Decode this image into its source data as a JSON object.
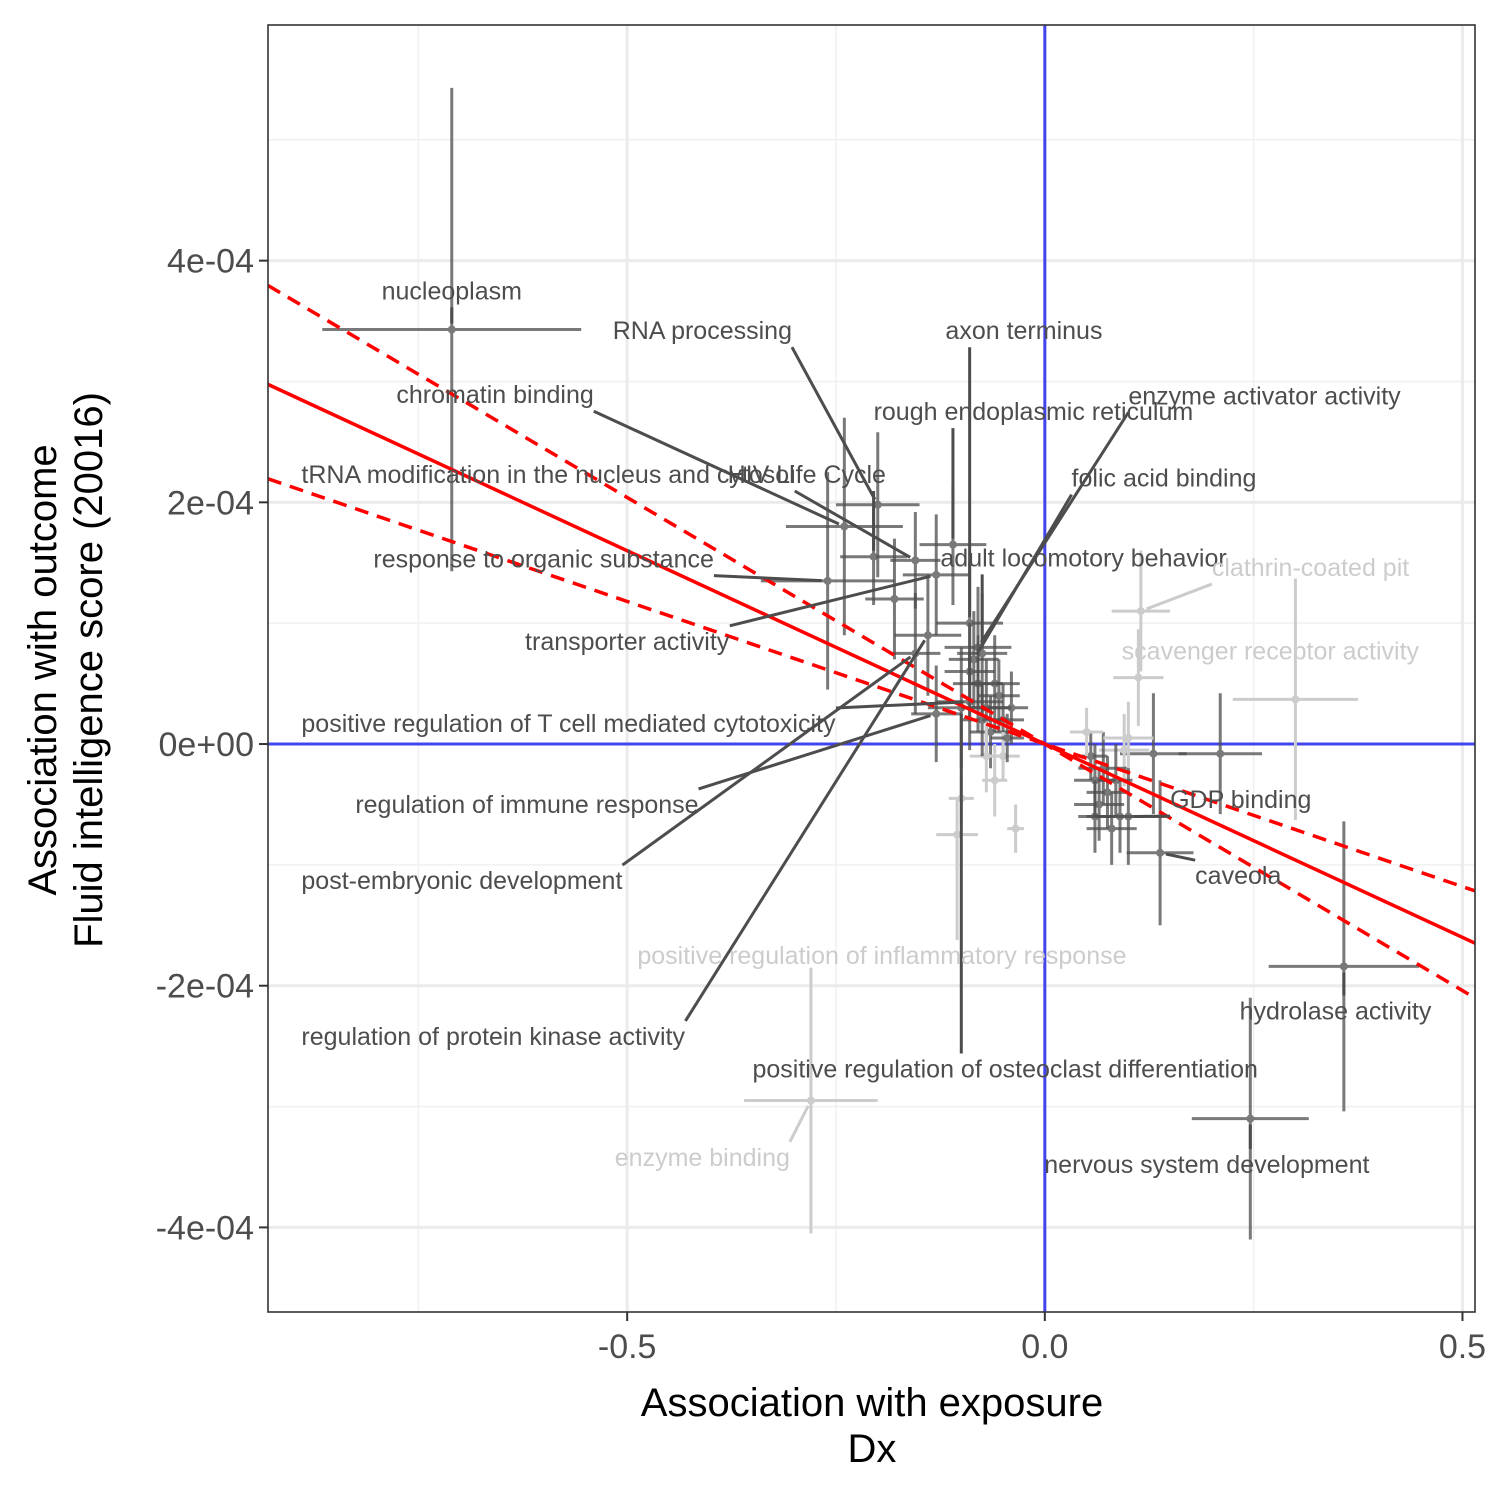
{
  "chart_data": {
    "type": "scatter",
    "title": "",
    "xlabel": "Association with exposure",
    "xlabel2": "Dx",
    "ylabel": "Association with outcome",
    "ylabel2": "Fluid intelligence score (20016)",
    "xlim": [
      -0.93,
      0.515
    ],
    "ylim": [
      -0.00047,
      0.000595
    ],
    "x_ticks": [
      -0.5,
      0.0,
      0.5
    ],
    "x_tick_labels": [
      "-0.5",
      "0.0",
      "0.5"
    ],
    "y_ticks": [
      0.0004,
      0.0002,
      0.0,
      -0.0002,
      -0.0004
    ],
    "y_tick_labels": [
      "4e-04",
      "2e-04",
      "0e+00",
      "-2e-04",
      "-4e-04"
    ],
    "grid": true,
    "reference_lines": {
      "x": 0,
      "y": 0,
      "color": "#4444ee"
    },
    "regression": {
      "slope": -0.00032,
      "intercept": 0.0,
      "ci_upper_slope": -0.000236,
      "ci_lower_slope": -0.000408,
      "color": "#ff0000"
    },
    "colors": {
      "dark": "#4d4d4d",
      "light": "#cccccc"
    },
    "labeled_points": [
      {
        "label": "nucleoplasm",
        "x": -0.71,
        "y": 0.000343,
        "xerr": 0.155,
        "yerr": 0.0002,
        "shade": "dark",
        "lx": -0.71,
        "ly": 0.000368,
        "anchor": "middle"
      },
      {
        "label": "chromatin binding",
        "x": -0.24,
        "y": 0.00018,
        "xerr": 0.07,
        "yerr": 9e-05,
        "shade": "dark",
        "lx": -0.54,
        "ly": 0.000282,
        "anchor": "end"
      },
      {
        "label": "RNA processing",
        "x": -0.2,
        "y": 0.000198,
        "xerr": 0.05,
        "yerr": 6e-05,
        "shade": "dark",
        "lx": -0.41,
        "ly": 0.000335,
        "anchor": "middle"
      },
      {
        "label": "axon terminus",
        "x": -0.09,
        "y": 0.0001,
        "xerr": 0.04,
        "yerr": 5e-05,
        "shade": "dark",
        "lx": -0.025,
        "ly": 0.000335,
        "anchor": "middle"
      },
      {
        "label": "rough endoplasmic reticulum",
        "x": -0.11,
        "y": 0.000165,
        "xerr": 0.04,
        "yerr": 5e-05,
        "shade": "dark",
        "lx": -0.205,
        "ly": 0.000268,
        "anchor": "start"
      },
      {
        "label": "enzyme activator activity",
        "x": -0.08,
        "y": 8e-05,
        "xerr": 0.04,
        "yerr": 5e-05,
        "shade": "dark",
        "lx": 0.1,
        "ly": 0.000281,
        "anchor": "start"
      },
      {
        "label": "tRNA modification in the nucleus and cytosol",
        "x": -0.155,
        "y": 0.000152,
        "xerr": 0.03,
        "yerr": 4e-05,
        "shade": "dark",
        "lx": -0.89,
        "ly": 0.000216,
        "anchor": "start"
      },
      {
        "label": "HIV Life Cycle",
        "x": -0.205,
        "y": 0.000155,
        "xerr": 0.04,
        "yerr": 4e-05,
        "shade": "dark",
        "lx": -0.285,
        "ly": 0.000216,
        "anchor": "middle"
      },
      {
        "label": "folic acid binding",
        "x": -0.085,
        "y": 7e-05,
        "xerr": 0.03,
        "yerr": 4e-05,
        "shade": "dark",
        "lx": 0.032,
        "ly": 0.000213,
        "anchor": "start"
      },
      {
        "label": "response to organic substance",
        "x": -0.26,
        "y": 0.000135,
        "xerr": 0.08,
        "yerr": 9e-05,
        "shade": "dark",
        "lx": -0.6,
        "ly": 0.000146,
        "anchor": "middle"
      },
      {
        "label": "adult locomotory behavior",
        "x": -0.075,
        "y": 7.5e-05,
        "xerr": 0.03,
        "yerr": 5e-05,
        "shade": "dark",
        "lx": -0.125,
        "ly": 0.000147,
        "anchor": "start"
      },
      {
        "label": "transporter activity",
        "x": -0.13,
        "y": 0.00014,
        "xerr": 0.04,
        "yerr": 5e-05,
        "shade": "dark",
        "lx": -0.5,
        "ly": 7.8e-05,
        "anchor": "middle"
      },
      {
        "label": "positive regulation of T cell mediated cytotoxicity",
        "x": -0.09,
        "y": 3.5e-05,
        "xerr": 0.04,
        "yerr": 4e-05,
        "shade": "dark",
        "lx": -0.89,
        "ly": 1e-05,
        "anchor": "start"
      },
      {
        "label": "regulation of immune response",
        "x": -0.13,
        "y": 2.5e-05,
        "xerr": 0.03,
        "yerr": 4e-05,
        "shade": "dark",
        "lx": -0.62,
        "ly": -5.7e-05,
        "anchor": "middle"
      },
      {
        "label": "post-embryonic development",
        "x": -0.155,
        "y": 7.5e-05,
        "xerr": 0.03,
        "yerr": 5e-05,
        "shade": "dark",
        "lx": -0.89,
        "ly": -0.00012,
        "anchor": "start"
      },
      {
        "label": "regulation of protein kinase activity",
        "x": -0.14,
        "y": 9e-05,
        "xerr": 0.04,
        "yerr": 5e-05,
        "shade": "dark",
        "lx": -0.89,
        "ly": -0.000249,
        "anchor": "start"
      },
      {
        "label": "positive regulation of osteoclast differentiation",
        "x": -0.1,
        "y": 3e-05,
        "xerr": 0.04,
        "yerr": 5e-05,
        "shade": "dark",
        "lx": -0.35,
        "ly": -0.000276,
        "anchor": "start"
      },
      {
        "label": "GDP binding",
        "x": 0.1,
        "y": -6e-05,
        "xerr": 0.05,
        "yerr": 4e-05,
        "shade": "dark",
        "lx": 0.15,
        "ly": -5.3e-05,
        "anchor": "start"
      },
      {
        "label": "caveola",
        "x": 0.138,
        "y": -9e-05,
        "xerr": 0.04,
        "yerr": 6e-05,
        "shade": "dark",
        "lx": 0.18,
        "ly": -0.000116,
        "anchor": "start"
      },
      {
        "label": "hydrolase activity",
        "x": 0.358,
        "y": -0.000184,
        "xerr": 0.09,
        "yerr": 0.00012,
        "shade": "dark",
        "lx": 0.348,
        "ly": -0.000228,
        "anchor": "middle"
      },
      {
        "label": "nervous system development",
        "x": 0.246,
        "y": -0.00031,
        "xerr": 0.07,
        "yerr": 0.0001,
        "shade": "dark",
        "lx": 0.194,
        "ly": -0.000355,
        "anchor": "middle"
      },
      {
        "label": "clathrin-coated pit",
        "x": 0.115,
        "y": 0.00011,
        "xerr": 0.035,
        "yerr": 5e-05,
        "shade": "light",
        "lx": 0.2,
        "ly": 0.000139,
        "anchor": "start"
      },
      {
        "label": "scavenger receptor activity",
        "x": 0.112,
        "y": 5.5e-05,
        "xerr": 0.03,
        "yerr": 4e-05,
        "shade": "light",
        "lx": 0.27,
        "ly": 7e-05,
        "anchor": "middle"
      },
      {
        "label": "positive regulation of inflammatory response",
        "x": -0.105,
        "y": -7.5e-05,
        "xerr": 0.025,
        "yerr": 3e-05,
        "shade": "light",
        "lx": -0.195,
        "ly": -0.000182,
        "anchor": "middle"
      },
      {
        "label": "enzyme binding",
        "x": -0.28,
        "y": -0.000295,
        "xerr": 0.08,
        "yerr": 0.00011,
        "shade": "light",
        "lx": -0.41,
        "ly": -0.000349,
        "anchor": "middle"
      }
    ],
    "unlabeled_points": [
      {
        "x": 0.3,
        "y": 3.7e-05,
        "xerr": 0.075,
        "yerr": 0.0001,
        "shade": "light"
      },
      {
        "x": 0.21,
        "y": -8e-06,
        "xerr": 0.05,
        "yerr": 5e-05,
        "shade": "dark"
      },
      {
        "x": 0.13,
        "y": -8e-06,
        "xerr": 0.04,
        "yerr": 5e-05,
        "shade": "dark"
      },
      {
        "x": 0.095,
        "y": -5e-06,
        "xerr": 0.03,
        "yerr": 3e-05,
        "shade": "light"
      },
      {
        "x": 0.07,
        "y": -2e-05,
        "xerr": 0.03,
        "yerr": 3e-05,
        "shade": "dark"
      },
      {
        "x": 0.06,
        "y": -3e-05,
        "xerr": 0.025,
        "yerr": 3e-05,
        "shade": "dark"
      },
      {
        "x": 0.065,
        "y": -5e-05,
        "xerr": 0.03,
        "yerr": 3e-05,
        "shade": "dark"
      },
      {
        "x": 0.075,
        "y": -4e-05,
        "xerr": 0.025,
        "yerr": 3e-05,
        "shade": "dark"
      },
      {
        "x": 0.08,
        "y": -7e-05,
        "xerr": 0.03,
        "yerr": 3e-05,
        "shade": "dark"
      },
      {
        "x": 0.055,
        "y": -1e-05,
        "xerr": 0.02,
        "yerr": 2e-05,
        "shade": "dark"
      },
      {
        "x": 0.09,
        "y": -6e-05,
        "xerr": 0.03,
        "yerr": 3e-05,
        "shade": "dark"
      },
      {
        "x": 0.05,
        "y": 1e-05,
        "xerr": 0.02,
        "yerr": 2e-05,
        "shade": "light"
      },
      {
        "x": 0.1,
        "y": 5e-06,
        "xerr": 0.03,
        "yerr": 3e-05,
        "shade": "light"
      },
      {
        "x": 0.085,
        "y": -3e-05,
        "xerr": 0.02,
        "yerr": 3e-05,
        "shade": "dark"
      },
      {
        "x": 0.06,
        "y": -6e-05,
        "xerr": 0.02,
        "yerr": 3e-05,
        "shade": "dark"
      },
      {
        "x": -0.06,
        "y": 5e-05,
        "xerr": 0.03,
        "yerr": 4e-05,
        "shade": "dark"
      },
      {
        "x": -0.07,
        "y": 3e-05,
        "xerr": 0.03,
        "yerr": 4e-05,
        "shade": "dark"
      },
      {
        "x": -0.05,
        "y": 2e-05,
        "xerr": 0.025,
        "yerr": 3e-05,
        "shade": "dark"
      },
      {
        "x": -0.08,
        "y": 5e-05,
        "xerr": 0.03,
        "yerr": 4e-05,
        "shade": "dark"
      },
      {
        "x": -0.065,
        "y": 1e-05,
        "xerr": 0.025,
        "yerr": 3e-05,
        "shade": "dark"
      },
      {
        "x": -0.04,
        "y": 3e-05,
        "xerr": 0.02,
        "yerr": 3e-05,
        "shade": "dark"
      },
      {
        "x": -0.09,
        "y": 6e-05,
        "xerr": 0.03,
        "yerr": 4e-05,
        "shade": "dark"
      },
      {
        "x": -0.07,
        "y": -1e-05,
        "xerr": 0.02,
        "yerr": 3e-05,
        "shade": "light"
      },
      {
        "x": -0.05,
        "y": -1e-05,
        "xerr": 0.02,
        "yerr": 2e-05,
        "shade": "light"
      },
      {
        "x": -0.055,
        "y": 4e-05,
        "xerr": 0.025,
        "yerr": 3e-05,
        "shade": "dark"
      },
      {
        "x": -0.075,
        "y": 2e-05,
        "xerr": 0.025,
        "yerr": 3e-05,
        "shade": "dark"
      },
      {
        "x": -0.045,
        "y": 5e-06,
        "xerr": 0.02,
        "yerr": 2e-05,
        "shade": "dark"
      },
      {
        "x": -0.035,
        "y": -7e-05,
        "xerr": 0.01,
        "yerr": 2e-05,
        "shade": "light"
      },
      {
        "x": -0.1,
        "y": -4.5e-05,
        "xerr": 0.015,
        "yerr": 2e-05,
        "shade": "light"
      },
      {
        "x": -0.06,
        "y": -3e-05,
        "xerr": 0.015,
        "yerr": 3e-05,
        "shade": "light"
      },
      {
        "x": -0.18,
        "y": 0.00012,
        "xerr": 0.035,
        "yerr": 5e-05,
        "shade": "dark"
      }
    ]
  }
}
